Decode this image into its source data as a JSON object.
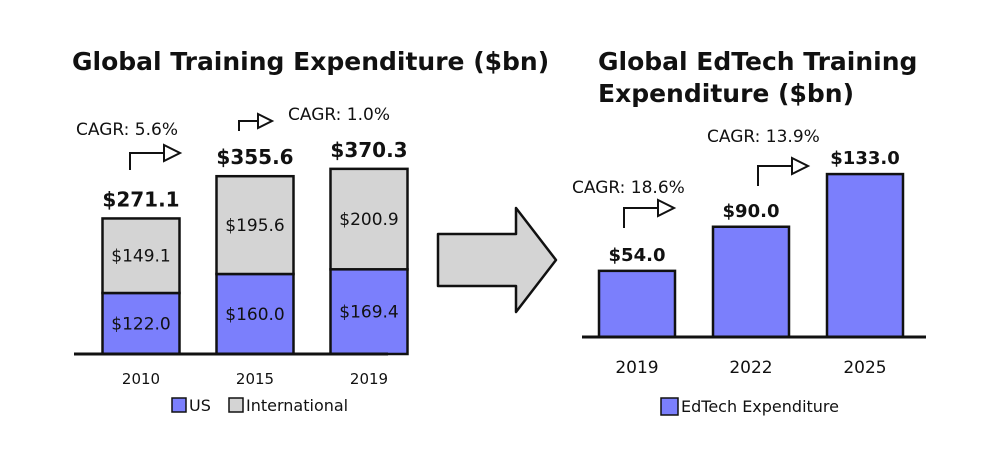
{
  "arrow_color": "#d4d4d4",
  "chart_data": [
    {
      "type": "bar",
      "title": "Global Training Expenditure ($bn)",
      "categories": [
        "2010",
        "2015",
        "2019"
      ],
      "series": [
        {
          "name": "US",
          "values": [
            122.0,
            160.0,
            169.4
          ],
          "labels": [
            "$122.0",
            "$160.0",
            "$169.4"
          ],
          "color": "#7b7ffc"
        },
        {
          "name": "International",
          "values": [
            149.1,
            195.6,
            200.9
          ],
          "labels": [
            "$149.1",
            "$195.6",
            "$200.9"
          ],
          "color": "#d4d4d4"
        }
      ],
      "totals": [
        271.1,
        355.6,
        370.3
      ],
      "total_labels": [
        "$271.1",
        "$355.6",
        "$370.3"
      ],
      "annotations": [
        "CAGR: 5.6%",
        "CAGR: 1.0%"
      ],
      "stacked": true,
      "ylim": [
        0,
        400
      ],
      "legend": "bottom",
      "grid": false
    },
    {
      "type": "bar",
      "title_lines": [
        "Global EdTech Training",
        "Expenditure ($bn)"
      ],
      "categories": [
        "2019",
        "2022",
        "2025"
      ],
      "series": [
        {
          "name": "EdTech Expenditure",
          "values": [
            54.0,
            90.0,
            133.0
          ],
          "labels": [
            "$54.0",
            "$90.0",
            "$133.0"
          ],
          "color": "#7b7ffc"
        }
      ],
      "annotations": [
        "CAGR: 18.6%",
        "CAGR: 13.9%"
      ],
      "ylim": [
        0,
        140
      ],
      "legend": "bottom",
      "grid": false
    }
  ]
}
